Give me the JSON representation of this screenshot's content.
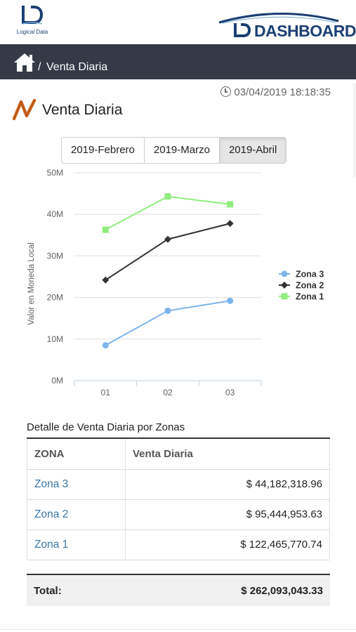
{
  "brand": {
    "left_logo_text": "Logical Data",
    "right_logo_text": "DASHBOARD",
    "primary_color": "#1c3f73"
  },
  "nav": {
    "home_icon": "home-icon",
    "separator": "/",
    "breadcrumb": "Venta Diaria",
    "bar_color": "#343a46"
  },
  "timestamp": {
    "icon": "clock-icon",
    "value": "03/04/2019 18:18:35"
  },
  "page": {
    "title": "Venta Diaria",
    "title_icon": "trend-line-icon",
    "accent_color": "#d2691e"
  },
  "month_tabs": [
    {
      "label": "2019-Febrero",
      "active": false
    },
    {
      "label": "2019-Marzo",
      "active": false
    },
    {
      "label": "2019-Abril",
      "active": true
    }
  ],
  "chart_data": {
    "type": "line",
    "ylabel": "Valor en Moneda Local",
    "xlabel": "",
    "categories": [
      "01",
      "02",
      "03"
    ],
    "ylim": [
      0,
      50000000
    ],
    "y_ticks": [
      "0M",
      "10M",
      "20M",
      "30M",
      "40M",
      "50M"
    ],
    "grid": true,
    "legend_position": "right",
    "series": [
      {
        "name": "Zona 3",
        "color": "#7cb5ec",
        "marker": "circle",
        "values": [
          8500000,
          16800000,
          19200000
        ]
      },
      {
        "name": "Zona 2",
        "color": "#333333",
        "marker": "diamond",
        "values": [
          24200000,
          34000000,
          37800000
        ]
      },
      {
        "name": "Zona 1",
        "color": "#90ed7d",
        "marker": "square",
        "values": [
          36300000,
          44300000,
          42400000
        ]
      }
    ]
  },
  "table": {
    "title": "Detalle de Venta Diaria por Zonas",
    "headers": [
      "ZONA",
      "Venta Diaria"
    ],
    "rows": [
      {
        "zona": "Zona 3",
        "venta": "$ 44,182,318.96"
      },
      {
        "zona": "Zona 2",
        "venta": "$ 95,444,953.63"
      },
      {
        "zona": "Zona 1",
        "venta": "$ 122,465,770.74"
      }
    ],
    "total_label": "Total:",
    "total_value": "$ 262,093,043.33"
  }
}
